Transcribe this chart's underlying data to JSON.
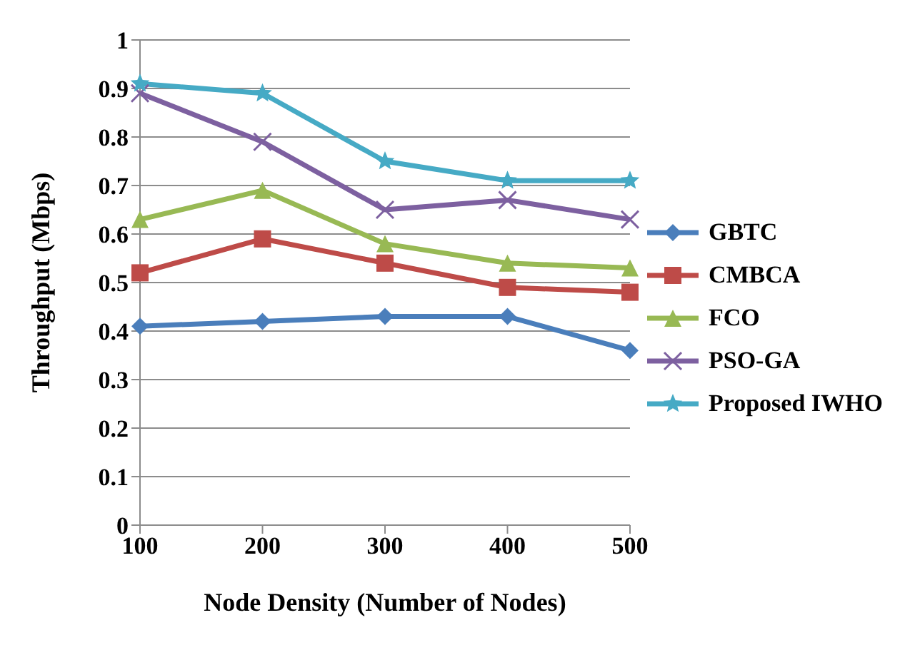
{
  "chart_data": {
    "type": "line",
    "xlabel": "Node Density (Number of Nodes)",
    "ylabel": "Throughput (Mbps)",
    "categories": [
      "100",
      "200",
      "300",
      "400",
      "500"
    ],
    "ylim": [
      0,
      1
    ],
    "yticks": [
      0,
      {
        "value": 0.1,
        "label": "0.1"
      },
      {
        "value": 0.2,
        "label": "0.2"
      },
      {
        "value": 0.3,
        "label": "0.3"
      },
      {
        "value": 0.4,
        "label": "0.4"
      },
      {
        "value": 0.5,
        "label": "0.5"
      },
      {
        "value": 0.6,
        "label": "0.6"
      },
      {
        "value": 0.7,
        "label": "0.7"
      },
      {
        "value": 0.8,
        "label": "0.8"
      },
      {
        "value": 0.9,
        "label": "0.9"
      },
      1
    ],
    "grid": "y",
    "legend": "right",
    "series": [
      {
        "name": "GBTC",
        "color": "#4a7ebb",
        "marker": "diamond",
        "values": [
          0.41,
          0.42,
          0.43,
          0.43,
          0.36
        ]
      },
      {
        "name": "CMBCA",
        "color": "#be4b48",
        "marker": "square",
        "values": [
          0.52,
          0.59,
          0.54,
          0.49,
          0.48
        ]
      },
      {
        "name": "FCO",
        "color": "#98b954",
        "marker": "triangle",
        "values": [
          0.63,
          0.69,
          0.58,
          0.54,
          0.53
        ]
      },
      {
        "name": "PSO-GA",
        "color": "#7d60a0",
        "marker": "cross",
        "values": [
          0.89,
          0.79,
          0.65,
          0.67,
          0.63
        ]
      },
      {
        "name": "Proposed IWHO",
        "color": "#46aac5",
        "marker": "star",
        "values": [
          0.91,
          0.89,
          0.75,
          0.71,
          0.71
        ]
      }
    ]
  }
}
